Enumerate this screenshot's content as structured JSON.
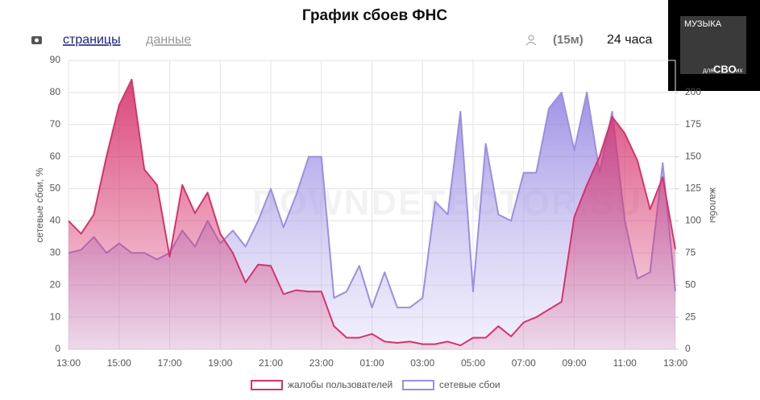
{
  "page": {
    "tab_pages": "страницы",
    "tab_data": "данные",
    "interval": "(15м)",
    "period": "24 часа",
    "watermark": "DOWNDETECTOR.SU",
    "logo_top": "МУЗЫКА",
    "logo_small": "для",
    "logo_main": "СВО",
    "logo_end": "их"
  },
  "chart_data": {
    "type": "area",
    "title": "График сбоев ФНС",
    "y_label": "сетевые сбои, %",
    "y2_label": "жалобы",
    "categories": [
      "13:00",
      null,
      null,
      null,
      "15:00",
      null,
      null,
      null,
      "17:00",
      null,
      null,
      null,
      "19:00",
      null,
      null,
      null,
      "21:00",
      null,
      null,
      null,
      "23:00",
      null,
      null,
      null,
      "01:00",
      null,
      null,
      null,
      "03:00",
      null,
      null,
      null,
      "05:00",
      null,
      null,
      null,
      "07:00",
      null,
      null,
      null,
      "09:00",
      null,
      null,
      null,
      "11:00",
      null,
      null,
      null,
      "13:00"
    ],
    "ylim": [
      0,
      90
    ],
    "yticks": [
      0,
      10,
      20,
      30,
      40,
      50,
      60,
      70,
      80,
      90
    ],
    "y2lim": [
      0,
      225
    ],
    "y2ticks": [
      0,
      25,
      50,
      75,
      100,
      125,
      150,
      175,
      200
    ],
    "grid": true,
    "series": [
      {
        "name": "жалобы пользователей",
        "color": "#d6336c",
        "axis": "y2",
        "values": [
          100,
          90,
          105,
          150,
          190,
          210,
          140,
          128,
          72,
          128,
          106,
          122,
          90,
          75,
          52,
          66,
          65,
          43,
          46,
          45,
          45,
          18,
          9,
          9,
          12,
          6,
          5,
          6,
          4,
          4,
          6,
          3,
          9,
          9,
          18,
          10,
          21,
          25,
          31,
          37,
          103,
          128,
          150,
          181,
          168,
          147,
          109,
          134,
          78
        ]
      },
      {
        "name": "сетевые сбои",
        "color": "#9b8fe0",
        "values": [
          30,
          31,
          35,
          30,
          33,
          30,
          30,
          28,
          30,
          37,
          32,
          40,
          33,
          37,
          32,
          40,
          50,
          38,
          48,
          60,
          60,
          16,
          18,
          26,
          13,
          24,
          13,
          13,
          16,
          46,
          42,
          74,
          18,
          64,
          42,
          40,
          55,
          55,
          75,
          80,
          62,
          80,
          55,
          74,
          40,
          22,
          24,
          58,
          18
        ]
      }
    ]
  }
}
